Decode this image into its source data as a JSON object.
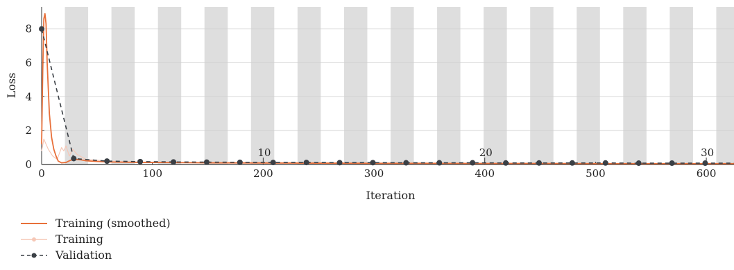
{
  "chart_data": {
    "type": "line",
    "xlabel": "Iteration",
    "ylabel": "Loss",
    "xlim": [
      0,
      625
    ],
    "ylim": [
      0,
      9.3
    ],
    "x_ticks": [
      0,
      100,
      200,
      300,
      400,
      500,
      600
    ],
    "y_ticks": [
      0,
      2,
      4,
      6,
      8
    ],
    "epoch_bands": {
      "iterations_per_epoch": 21,
      "shaded": "alternate"
    },
    "epoch_labels": [
      {
        "epoch": "10",
        "iteration": 200
      },
      {
        "epoch": "20",
        "iteration": 400
      },
      {
        "epoch": "30",
        "iteration": 600
      }
    ],
    "series": [
      {
        "name": "Training (smoothed)",
        "color": "#e8703a",
        "x": [
          0,
          1,
          2,
          3,
          4,
          5,
          7,
          9,
          11,
          13,
          15,
          18,
          22,
          26,
          30,
          35,
          40,
          50,
          60,
          80,
          100,
          150,
          200,
          250,
          300,
          350,
          400,
          450,
          500,
          550,
          600,
          625
        ],
        "y": [
          1.2,
          5.5,
          8.6,
          8.9,
          8.3,
          6.0,
          3.0,
          1.6,
          0.9,
          0.5,
          0.2,
          0.1,
          0.12,
          0.25,
          0.3,
          0.28,
          0.22,
          0.18,
          0.15,
          0.13,
          0.12,
          0.1,
          0.09,
          0.08,
          0.07,
          0.07,
          0.06,
          0.06,
          0.05,
          0.05,
          0.05,
          0.05
        ]
      },
      {
        "name": "Training",
        "color": "#f6c7b6",
        "x": [
          0,
          2,
          4,
          6,
          8,
          10,
          14,
          18,
          20,
          22,
          25,
          28,
          32,
          36,
          40,
          50,
          60,
          80,
          100,
          150,
          200,
          300,
          400,
          500,
          600,
          625
        ],
        "y": [
          0.8,
          1.5,
          1.2,
          0.9,
          0.7,
          0.5,
          0.3,
          1.0,
          0.8,
          1.1,
          0.5,
          0.9,
          0.6,
          0.45,
          0.3,
          0.25,
          0.2,
          0.15,
          0.13,
          0.1,
          0.09,
          0.08,
          0.07,
          0.06,
          0.05,
          0.05
        ]
      },
      {
        "name": "Validation",
        "color": "#3a3f45",
        "x": [
          0,
          29,
          59,
          89,
          119,
          149,
          179,
          209,
          239,
          269,
          299,
          329,
          359,
          389,
          419,
          449,
          479,
          509,
          539,
          569,
          599,
          625
        ],
        "y": [
          8.0,
          0.35,
          0.2,
          0.17,
          0.15,
          0.14,
          0.13,
          0.12,
          0.12,
          0.11,
          0.11,
          0.1,
          0.1,
          0.1,
          0.09,
          0.09,
          0.09,
          0.09,
          0.08,
          0.08,
          0.08,
          0.08
        ]
      }
    ],
    "legend_placement": "bottom-left"
  }
}
